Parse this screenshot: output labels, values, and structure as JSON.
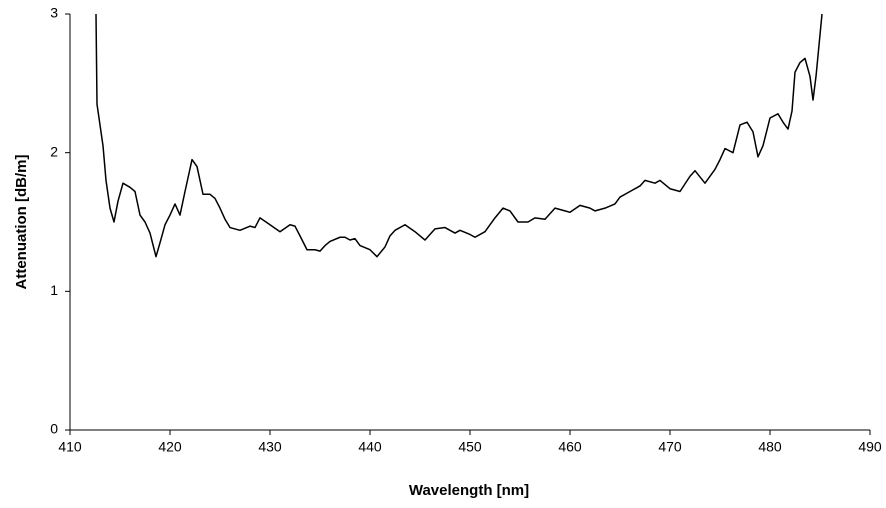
{
  "chart_data": {
    "type": "line",
    "x_label": "Wavelength [nm]",
    "y_label": "Attenuation [dB/m]",
    "xlim": [
      410,
      490
    ],
    "xticks": [
      410,
      420,
      430,
      440,
      450,
      460,
      470,
      480,
      490
    ],
    "ylim": [
      0,
      3
    ],
    "yticks": [
      0,
      1,
      2,
      3
    ],
    "series": [
      {
        "color": "#000000",
        "x": [
          412.6,
          412.7,
          413.0,
          413.3,
          413.6,
          414.0,
          414.4,
          414.8,
          415.3,
          416.0,
          416.5,
          417.0,
          417.5,
          418.0,
          418.6,
          419.0,
          419.5,
          420.0,
          420.5,
          421.0,
          421.5,
          422.2,
          422.7,
          423.3,
          424.0,
          424.5,
          425.0,
          425.5,
          426.0,
          427.0,
          428.0,
          428.5,
          429.0,
          430.0,
          431.0,
          432.0,
          432.5,
          433.0,
          433.7,
          434.5,
          435.0,
          435.5,
          436.0,
          437.0,
          437.5,
          438.0,
          438.5,
          439.0,
          440.0,
          440.7,
          441.5,
          442.0,
          442.5,
          443.5,
          444.5,
          445.5,
          446.5,
          447.5,
          448.5,
          449.0,
          450.0,
          450.5,
          451.5,
          452.5,
          453.3,
          454.0,
          454.8,
          455.8,
          456.5,
          457.5,
          458.5,
          459.5,
          460.0,
          461.0,
          462.0,
          462.5,
          463.5,
          464.5,
          465.0,
          466.0,
          467.0,
          467.5,
          468.5,
          469.0,
          470.0,
          471.0,
          472.0,
          472.5,
          473.5,
          474.5,
          475.0,
          475.5,
          476.3,
          477.0,
          477.7,
          478.3,
          478.8,
          479.3,
          480.0,
          480.8,
          481.3,
          481.8,
          482.2,
          482.5,
          483.0,
          483.5,
          484.0,
          484.3,
          484.6,
          485.0,
          485.2
        ],
        "values": [
          3.0,
          2.35,
          2.2,
          2.05,
          1.8,
          1.6,
          1.5,
          1.65,
          1.78,
          1.75,
          1.72,
          1.55,
          1.5,
          1.42,
          1.25,
          1.35,
          1.48,
          1.55,
          1.63,
          1.55,
          1.72,
          1.95,
          1.9,
          1.7,
          1.7,
          1.67,
          1.6,
          1.52,
          1.46,
          1.44,
          1.47,
          1.46,
          1.53,
          1.48,
          1.43,
          1.48,
          1.47,
          1.4,
          1.3,
          1.3,
          1.29,
          1.33,
          1.36,
          1.39,
          1.39,
          1.37,
          1.38,
          1.33,
          1.3,
          1.25,
          1.32,
          1.4,
          1.44,
          1.48,
          1.43,
          1.37,
          1.45,
          1.46,
          1.42,
          1.44,
          1.41,
          1.39,
          1.43,
          1.53,
          1.6,
          1.58,
          1.5,
          1.5,
          1.53,
          1.52,
          1.6,
          1.58,
          1.57,
          1.62,
          1.6,
          1.58,
          1.6,
          1.63,
          1.68,
          1.72,
          1.76,
          1.8,
          1.78,
          1.8,
          1.74,
          1.72,
          1.83,
          1.87,
          1.78,
          1.88,
          1.95,
          2.03,
          2.0,
          2.2,
          2.22,
          2.15,
          1.97,
          2.05,
          2.25,
          2.28,
          2.22,
          2.17,
          2.3,
          2.58,
          2.65,
          2.68,
          2.55,
          2.38,
          2.55,
          2.85,
          3.0
        ]
      }
    ]
  }
}
